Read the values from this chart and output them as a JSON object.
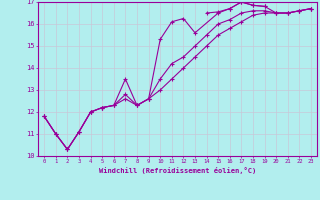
{
  "xlabel": "Windchill (Refroidissement éolien,°C)",
  "xlim": [
    -0.5,
    23.5
  ],
  "ylim": [
    10,
    17
  ],
  "xticks": [
    0,
    1,
    2,
    3,
    4,
    5,
    6,
    7,
    8,
    9,
    10,
    11,
    12,
    13,
    14,
    15,
    16,
    17,
    18,
    19,
    20,
    21,
    22,
    23
  ],
  "yticks": [
    10,
    11,
    12,
    13,
    14,
    15,
    16,
    17
  ],
  "bg_color": "#b2eeee",
  "grid_color": "#aadddd",
  "line_color": "#990099",
  "series": [
    {
      "x": [
        0,
        1,
        2,
        3,
        4,
        5,
        6,
        7,
        8,
        9,
        10,
        11,
        12,
        13,
        15,
        16,
        17,
        18,
        19
      ],
      "y": [
        11.8,
        11.0,
        10.3,
        11.1,
        12.0,
        12.2,
        12.3,
        13.5,
        12.3,
        12.6,
        15.3,
        16.1,
        16.25,
        15.6,
        16.5,
        16.7,
        17.0,
        16.85,
        16.8
      ]
    },
    {
      "x": [
        14,
        15,
        16,
        17,
        18,
        19,
        20,
        21,
        22,
        23
      ],
      "y": [
        16.5,
        16.55,
        16.7,
        17.0,
        16.85,
        16.8,
        16.5,
        16.5,
        16.6,
        16.7
      ]
    },
    {
      "x": [
        0,
        1,
        2,
        3,
        4,
        5,
        6,
        7,
        8,
        9,
        10,
        11,
        12,
        13,
        14,
        15,
        16,
        17,
        18,
        19,
        20,
        21,
        22,
        23
      ],
      "y": [
        11.8,
        11.0,
        10.3,
        11.1,
        12.0,
        12.2,
        12.3,
        12.6,
        12.3,
        12.6,
        13.0,
        13.5,
        14.0,
        14.5,
        15.0,
        15.5,
        15.8,
        16.1,
        16.4,
        16.5,
        16.5,
        16.5,
        16.6,
        16.7
      ]
    },
    {
      "x": [
        0,
        1,
        2,
        3,
        4,
        5,
        6,
        7,
        8,
        9,
        10,
        11,
        12,
        13,
        14,
        15,
        16,
        17,
        18,
        19,
        20,
        21,
        22,
        23
      ],
      "y": [
        11.8,
        11.0,
        10.3,
        11.1,
        12.0,
        12.2,
        12.3,
        12.8,
        12.3,
        12.6,
        13.5,
        14.2,
        14.5,
        15.0,
        15.5,
        16.0,
        16.2,
        16.5,
        16.6,
        16.6,
        16.5,
        16.5,
        16.6,
        16.7
      ]
    }
  ]
}
